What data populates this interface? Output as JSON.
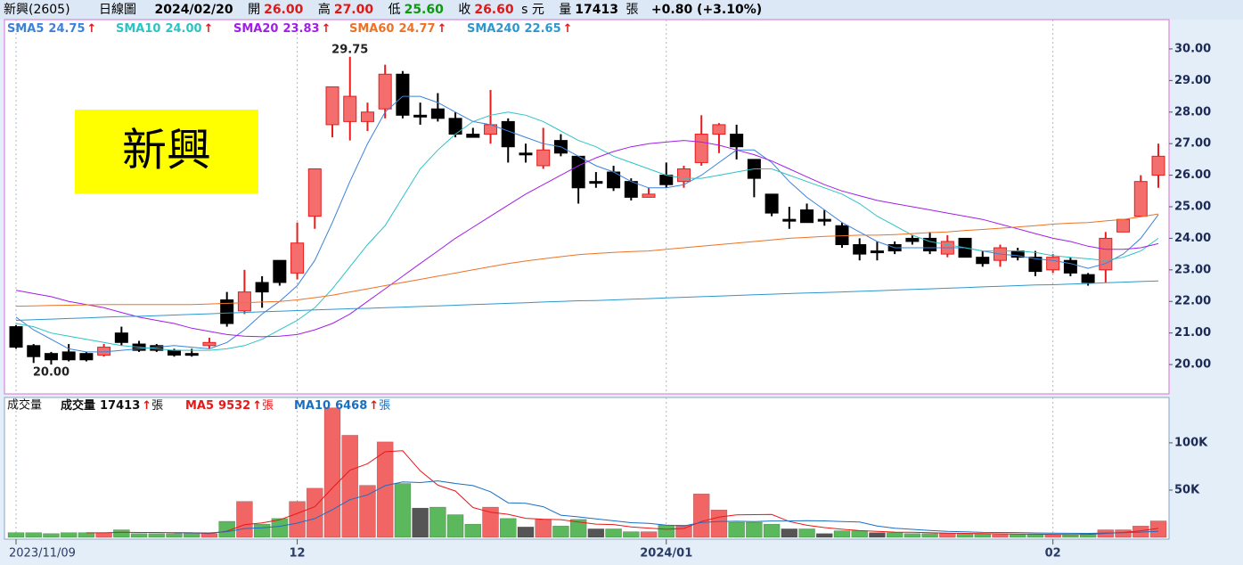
{
  "header": {
    "symbol": "新興(2605)",
    "period": "日線圖",
    "date": "2024/02/20",
    "open_label": "開",
    "open": "26.00",
    "high_label": "高",
    "high": "27.00",
    "low_label": "低",
    "low": "25.60",
    "close_label": "收",
    "close": "26.60",
    "unit": "s 元",
    "volume_label": "量",
    "volume": "17413",
    "volume_unit": "張",
    "change": "+0.80 (+3.10%)"
  },
  "chart_data": [
    {
      "type": "candlestick",
      "name_box": "新興",
      "arrow": "↑",
      "up_color": "#f46e6e",
      "up_wick": "#e81c1c",
      "down_color": "#000000",
      "categories": [
        "2023/11/09",
        null,
        null,
        null,
        null,
        null,
        null,
        null,
        null,
        null,
        null,
        null,
        null,
        null,
        null,
        null,
        "12",
        null,
        null,
        null,
        null,
        null,
        null,
        null,
        null,
        null,
        null,
        null,
        null,
        null,
        null,
        null,
        null,
        null,
        null,
        null,
        null,
        "2024/01",
        null,
        null,
        null,
        null,
        null,
        null,
        null,
        null,
        null,
        null,
        null,
        null,
        null,
        null,
        null,
        null,
        null,
        null,
        null,
        null,
        null,
        "02",
        null,
        null,
        null,
        null,
        null,
        null
      ],
      "open": [
        21.2,
        20.6,
        20.35,
        20.4,
        20.35,
        20.3,
        21.0,
        20.65,
        20.6,
        20.45,
        20.35,
        20.6,
        22.05,
        21.7,
        22.6,
        23.3,
        22.9,
        24.7,
        27.6,
        27.7,
        27.7,
        28.1,
        29.2,
        27.9,
        28.1,
        27.8,
        27.3,
        27.3,
        27.7,
        26.7,
        26.3,
        27.1,
        26.6,
        25.8,
        26.1,
        25.8,
        25.3,
        26.0,
        25.8,
        26.4,
        27.3,
        27.3,
        26.5,
        25.4,
        24.6,
        24.9,
        24.6,
        24.4,
        23.8,
        23.6,
        23.8,
        24.0,
        24.0,
        23.5,
        24.0,
        23.4,
        23.3,
        23.6,
        23.4,
        23.0,
        23.3,
        22.85,
        23.0,
        24.2,
        24.7,
        26.0
      ],
      "high": [
        21.25,
        20.65,
        20.4,
        20.65,
        20.4,
        20.65,
        21.2,
        20.75,
        20.65,
        20.5,
        20.5,
        20.85,
        22.3,
        23.0,
        22.8,
        23.3,
        24.5,
        26.2,
        28.8,
        29.75,
        28.3,
        29.5,
        29.3,
        28.3,
        28.6,
        28.0,
        27.5,
        28.7,
        27.8,
        27.0,
        27.5,
        27.3,
        26.6,
        26.1,
        26.3,
        25.9,
        25.6,
        26.4,
        26.3,
        27.9,
        27.65,
        27.6,
        26.5,
        25.4,
        25.0,
        25.1,
        24.9,
        24.5,
        24.0,
        23.9,
        23.9,
        24.1,
        24.2,
        24.1,
        24.0,
        23.6,
        23.8,
        23.7,
        23.6,
        23.5,
        23.4,
        22.9,
        24.2,
        24.6,
        26.0,
        27.0
      ],
      "low": [
        20.5,
        20.05,
        20.0,
        20.1,
        20.1,
        20.25,
        20.6,
        20.4,
        20.4,
        20.25,
        20.25,
        20.5,
        21.2,
        21.6,
        21.8,
        22.5,
        22.7,
        24.3,
        27.2,
        27.1,
        27.4,
        27.8,
        27.8,
        27.6,
        27.7,
        27.2,
        27.2,
        27.0,
        26.4,
        26.4,
        26.2,
        26.6,
        25.1,
        25.6,
        25.5,
        25.2,
        25.3,
        25.6,
        25.6,
        26.3,
        26.7,
        26.5,
        25.3,
        24.7,
        24.3,
        24.5,
        24.4,
        23.7,
        23.3,
        23.3,
        23.5,
        23.8,
        23.5,
        23.4,
        23.4,
        23.1,
        23.1,
        23.3,
        22.8,
        22.9,
        22.8,
        22.5,
        22.6,
        24.2,
        24.7,
        25.6
      ],
      "close": [
        20.55,
        20.25,
        20.15,
        20.15,
        20.15,
        20.55,
        20.7,
        20.45,
        20.45,
        20.3,
        20.3,
        20.7,
        21.3,
        22.3,
        22.3,
        22.6,
        23.85,
        26.2,
        28.8,
        28.5,
        28.0,
        29.2,
        27.9,
        27.9,
        27.8,
        27.3,
        27.2,
        27.6,
        26.9,
        26.7,
        26.8,
        26.7,
        25.6,
        25.8,
        25.6,
        25.3,
        25.4,
        25.7,
        26.2,
        27.3,
        27.6,
        26.9,
        25.9,
        24.8,
        24.6,
        24.5,
        24.6,
        23.8,
        23.5,
        23.6,
        23.6,
        23.9,
        23.6,
        23.9,
        23.4,
        23.2,
        23.7,
        23.4,
        22.95,
        23.4,
        22.9,
        22.6,
        24.0,
        24.6,
        25.8,
        26.6
      ],
      "series": [
        {
          "name": "SMA5",
          "legend_value": "24.75",
          "color": "#3c82d8",
          "values": [
            21.5,
            21.1,
            20.8,
            20.5,
            20.4,
            20.4,
            20.45,
            20.5,
            20.55,
            20.6,
            20.55,
            20.5,
            20.7,
            21.1,
            21.6,
            22.0,
            22.5,
            23.3,
            24.5,
            25.8,
            27.0,
            28.0,
            28.5,
            28.5,
            28.3,
            28.0,
            27.7,
            27.6,
            27.4,
            27.2,
            27.0,
            26.9,
            26.6,
            26.3,
            26.1,
            25.8,
            25.6,
            25.6,
            25.7,
            26.0,
            26.4,
            26.8,
            26.8,
            26.4,
            25.8,
            25.3,
            24.9,
            24.5,
            24.2,
            23.9,
            23.7,
            23.7,
            23.7,
            23.7,
            23.7,
            23.6,
            23.5,
            23.45,
            23.35,
            23.3,
            23.2,
            23.05,
            23.2,
            23.5,
            24.0,
            24.75
          ]
        },
        {
          "name": "SMA10",
          "legend_value": "24.00",
          "color": "#2cc3c6",
          "values": [
            21.3,
            21.2,
            21.0,
            20.9,
            20.8,
            20.7,
            20.6,
            20.55,
            20.5,
            20.45,
            20.45,
            20.45,
            20.5,
            20.6,
            20.8,
            21.1,
            21.4,
            21.8,
            22.4,
            23.1,
            23.8,
            24.4,
            25.3,
            26.2,
            26.8,
            27.3,
            27.7,
            27.9,
            28.0,
            27.9,
            27.7,
            27.4,
            27.1,
            26.9,
            26.6,
            26.4,
            26.2,
            26.0,
            25.9,
            25.9,
            26.0,
            26.1,
            26.2,
            26.2,
            26.0,
            25.8,
            25.6,
            25.4,
            25.1,
            24.7,
            24.4,
            24.1,
            23.9,
            23.8,
            23.7,
            23.6,
            23.6,
            23.6,
            23.55,
            23.45,
            23.4,
            23.35,
            23.3,
            23.4,
            23.6,
            24.0
          ]
        },
        {
          "name": "SMA20",
          "legend_value": "23.83",
          "color": "#a21ee8",
          "values": [
            22.35,
            22.25,
            22.15,
            22.0,
            21.9,
            21.8,
            21.65,
            21.5,
            21.4,
            21.3,
            21.15,
            21.05,
            20.95,
            20.9,
            20.88,
            20.9,
            20.95,
            21.1,
            21.3,
            21.6,
            22.0,
            22.4,
            22.8,
            23.2,
            23.6,
            24.0,
            24.35,
            24.7,
            25.05,
            25.4,
            25.7,
            26.0,
            26.3,
            26.55,
            26.75,
            26.9,
            27.0,
            27.05,
            27.1,
            27.05,
            26.95,
            26.8,
            26.65,
            26.45,
            26.2,
            25.95,
            25.7,
            25.5,
            25.35,
            25.2,
            25.1,
            25.0,
            24.9,
            24.8,
            24.7,
            24.6,
            24.45,
            24.3,
            24.15,
            24.0,
            23.9,
            23.75,
            23.65,
            23.65,
            23.7,
            23.83
          ]
        },
        {
          "name": "SMA60",
          "legend_value": "24.77",
          "color": "#ec7326",
          "values": [
            21.85,
            21.86,
            21.87,
            21.88,
            21.89,
            21.9,
            21.9,
            21.9,
            21.9,
            21.9,
            21.9,
            21.92,
            21.94,
            21.96,
            21.98,
            22.0,
            22.05,
            22.12,
            22.2,
            22.3,
            22.4,
            22.5,
            22.6,
            22.7,
            22.8,
            22.9,
            23.0,
            23.1,
            23.2,
            23.28,
            23.35,
            23.42,
            23.48,
            23.52,
            23.55,
            23.58,
            23.6,
            23.65,
            23.7,
            23.75,
            23.8,
            23.85,
            23.9,
            23.95,
            24.0,
            24.03,
            24.06,
            24.08,
            24.1,
            24.1,
            24.12,
            24.15,
            24.18,
            24.2,
            24.25,
            24.28,
            24.32,
            24.36,
            24.4,
            24.45,
            24.48,
            24.5,
            24.55,
            24.6,
            24.68,
            24.77
          ]
        },
        {
          "name": "SMA240",
          "legend_value": "22.65",
          "color": "#2f97cf",
          "values": [
            21.4,
            21.42,
            21.44,
            21.46,
            21.48,
            21.5,
            21.52,
            21.53,
            21.55,
            21.57,
            21.59,
            21.61,
            21.63,
            21.65,
            21.67,
            21.69,
            21.71,
            21.73,
            21.75,
            21.77,
            21.78,
            21.8,
            21.82,
            21.84,
            21.86,
            21.88,
            21.9,
            21.92,
            21.94,
            21.96,
            21.98,
            22.0,
            22.02,
            22.03,
            22.05,
            22.07,
            22.09,
            22.11,
            22.13,
            22.15,
            22.17,
            22.19,
            22.21,
            22.23,
            22.25,
            22.27,
            22.28,
            22.3,
            22.32,
            22.34,
            22.36,
            22.38,
            22.4,
            22.42,
            22.44,
            22.46,
            22.48,
            22.5,
            22.52,
            22.53,
            22.55,
            22.57,
            22.59,
            22.61,
            22.63,
            22.65
          ]
        }
      ],
      "annotations": [
        {
          "label": "29.75",
          "value": 29.75
        },
        {
          "label": "20.00",
          "value": 20.0
        }
      ],
      "ylim": [
        19.07,
        30.93
      ],
      "yticks": [
        {
          "value": 20,
          "label": "20.00"
        },
        {
          "value": 21,
          "label": "21.00"
        },
        {
          "value": 22,
          "label": "22.00"
        },
        {
          "value": 23,
          "label": "23.00"
        },
        {
          "value": 24,
          "label": "24.00"
        },
        {
          "value": 25,
          "label": "25.00"
        },
        {
          "value": 26,
          "label": "26.00"
        },
        {
          "value": 27,
          "label": "27.00"
        },
        {
          "value": 28,
          "label": "28.00"
        },
        {
          "value": 29,
          "label": "29.00"
        },
        {
          "value": 30,
          "label": "30.00"
        }
      ]
    },
    {
      "type": "bar",
      "title": "成交量",
      "name": "成交量",
      "legend_value": "17413",
      "unit": "張",
      "arrow": "↑",
      "up_color": "#f26565",
      "down_color": "#5cb85c",
      "flat_color": "#555555",
      "values": [
        5000,
        5000,
        4000,
        5000,
        5000,
        5000,
        8000,
        4000,
        4000,
        4000,
        4000,
        4000,
        17000,
        38000,
        14000,
        20000,
        38000,
        52000,
        137000,
        108000,
        55000,
        101000,
        57000,
        31000,
        32000,
        24000,
        14000,
        32000,
        20000,
        11000,
        19000,
        12000,
        19000,
        9000,
        9000,
        6000,
        6000,
        13000,
        13000,
        46000,
        29000,
        16000,
        16000,
        14000,
        9000,
        9000,
        4000,
        7000,
        7000,
        5000,
        5000,
        4000,
        4000,
        4000,
        4000,
        4000,
        3000,
        3000,
        3000,
        3000,
        3000,
        4000,
        8000,
        8000,
        12000,
        17413
      ],
      "series": [
        {
          "name": "MA5",
          "legend_value": "9532",
          "color": "#e81818",
          "values": [
            null,
            null,
            null,
            null,
            4800,
            4800,
            5400,
            5200,
            5200,
            5000,
            4800,
            4000,
            6600,
            13400,
            15400,
            18600,
            25400,
            32400,
            52200,
            71000,
            78000,
            90600,
            91600,
            70400,
            55200,
            49000,
            31600,
            26600,
            24400,
            20200,
            19200,
            18800,
            16200,
            14000,
            13600,
            11000,
            9800,
            8600,
            9400,
            16800,
            21400,
            23800,
            24000,
            24200,
            16800,
            12800,
            10400,
            8600,
            7200,
            6400,
            5600,
            5400,
            5000,
            4400,
            4200,
            4000,
            3800,
            3600,
            3400,
            3200,
            3000,
            3200,
            4200,
            5200,
            7000,
            9532
          ]
        },
        {
          "name": "MA10",
          "legend_value": "6468",
          "color": "#1a6fc2",
          "values": [
            null,
            null,
            null,
            null,
            null,
            null,
            null,
            null,
            null,
            5000,
            4800,
            4700,
            6000,
            9300,
            10200,
            11700,
            15100,
            19900,
            29300,
            39900,
            45000,
            54700,
            58700,
            58000,
            59800,
            57000,
            54800,
            48300,
            36600,
            36000,
            32400,
            23500,
            21700,
            19500,
            17500,
            15600,
            14800,
            12900,
            12200,
            15700,
            16700,
            17100,
            16800,
            17300,
            17300,
            17600,
            17400,
            16800,
            16200,
            12100,
            9700,
            8500,
            7300,
            6300,
            5800,
            5300,
            5200,
            5100,
            4700,
            4500,
            4300,
            4200,
            4600,
            4900,
            5600,
            6468
          ]
        }
      ],
      "ylim": [
        0,
        148000
      ],
      "yticks": [
        {
          "value": 50000,
          "label": "50K"
        },
        {
          "value": 100000,
          "label": "100K"
        }
      ]
    }
  ]
}
